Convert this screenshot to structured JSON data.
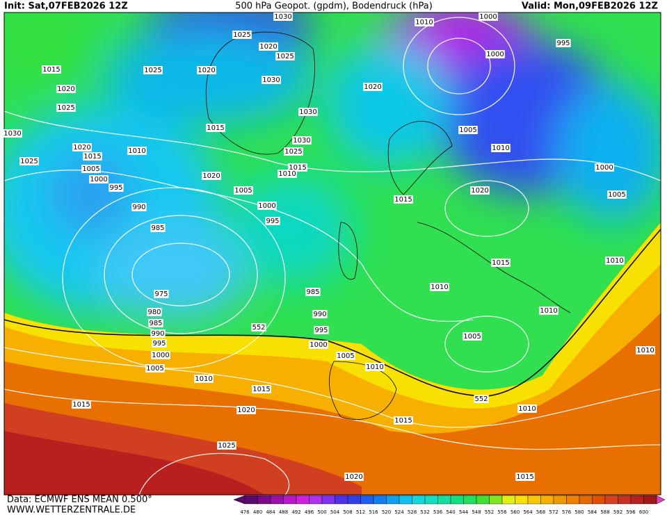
{
  "header": {
    "init": "Init: Sat,07FEB2026 12Z",
    "title": "500 hPa Geopot. (gpdm), Bodendruck (hPa)",
    "valid": "Valid: Mon,09FEB2026 12Z"
  },
  "footer": {
    "source": "Data: ECMWF ENS MEAN 0.500°",
    "website": "WWW.WETTERZENTRALE.DE"
  },
  "colorbar": {
    "labels": [
      476,
      480,
      484,
      488,
      492,
      496,
      500,
      504,
      508,
      512,
      516,
      520,
      524,
      528,
      532,
      536,
      540,
      544,
      548,
      552,
      556,
      560,
      564,
      568,
      572,
      576,
      580,
      584,
      588,
      592,
      596,
      600
    ],
    "colors": [
      "#5a0a6a",
      "#7a0a8a",
      "#9a10a8",
      "#b818c8",
      "#d020e0",
      "#b030f0",
      "#8030f0",
      "#5030e8",
      "#3040e8",
      "#2060f0",
      "#1080f0",
      "#10a0f0",
      "#10c0f0",
      "#10d8e0",
      "#10e0c0",
      "#10e0a0",
      "#10e080",
      "#20e060",
      "#40e030",
      "#80e820",
      "#e0f010",
      "#f8e000",
      "#f8c800",
      "#f8b000",
      "#f09800",
      "#f08000",
      "#e86800",
      "#e05000",
      "#d84020",
      "#c83020",
      "#b82020",
      "#a01818"
    ]
  },
  "isobar_labels": [
    "1030",
    "1000",
    "1010",
    "1025",
    "1020",
    "1025",
    "1000",
    "995",
    "1015",
    "1025",
    "1020",
    "1030",
    "1020",
    "1020",
    "1025",
    "1030",
    "1030",
    "1015",
    "1005",
    "1030",
    "1020",
    "1010",
    "1025",
    "1010",
    "1015",
    "1025",
    "1005",
    "1000",
    "1015",
    "1020",
    "1010",
    "1000",
    "995",
    "1005",
    "1020",
    "1005",
    "1015",
    "990",
    "1000",
    "995",
    "985",
    "1010",
    "1015",
    "1010",
    "985",
    "975",
    "990",
    "980",
    "1010",
    "985",
    "995",
    "990",
    "1005",
    "995",
    "1000",
    "1010",
    "1000",
    "1005",
    "1010",
    "1005",
    "1010",
    "1015",
    "552",
    "552",
    "1015",
    "1020",
    "1010",
    "1015",
    "1025",
    "1020",
    "1015"
  ]
}
